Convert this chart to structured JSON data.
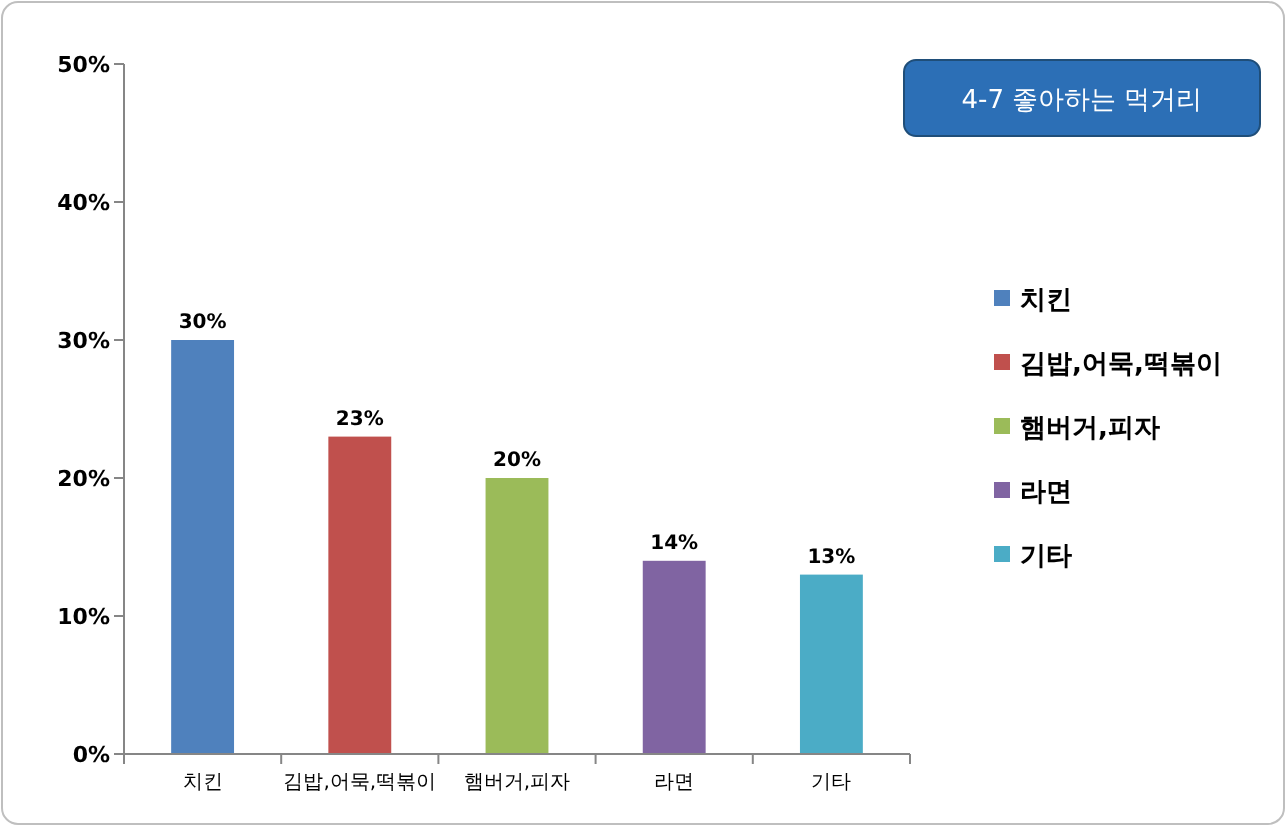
{
  "chart_data": {
    "type": "bar",
    "title": "4-7 좋아하는 먹거리",
    "categories": [
      "치킨",
      "김밥,어묵,떡볶이",
      "햄버거,피자",
      "라면",
      "기타"
    ],
    "series": [
      {
        "name": "치킨",
        "color": "#4f81bd",
        "values": [
          30,
          null,
          null,
          null,
          null
        ],
        "value_labels": [
          "30%",
          null,
          null,
          null,
          null
        ]
      },
      {
        "name": "김밥,어묵,떡볶이",
        "color": "#c0504d",
        "values": [
          null,
          23,
          null,
          null,
          null
        ],
        "value_labels": [
          null,
          "23%",
          null,
          null,
          null
        ]
      },
      {
        "name": "햄버거,피자",
        "color": "#9bbb59",
        "values": [
          null,
          null,
          20,
          null,
          null
        ],
        "value_labels": [
          null,
          null,
          "20%",
          null,
          null
        ]
      },
      {
        "name": "라면",
        "color": "#8064a2",
        "values": [
          null,
          null,
          null,
          14,
          null
        ],
        "value_labels": [
          null,
          null,
          null,
          "14%",
          null
        ]
      },
      {
        "name": "기타",
        "color": "#4bacc6",
        "values": [
          null,
          null,
          null,
          null,
          13
        ],
        "value_labels": [
          null,
          null,
          null,
          null,
          "13%"
        ]
      }
    ],
    "ylim": [
      0,
      50
    ],
    "yticks": [
      {
        "value": 0,
        "label": "0%"
      },
      {
        "value": 10,
        "label": "10%"
      },
      {
        "value": 20,
        "label": "20%"
      },
      {
        "value": 30,
        "label": "30%"
      },
      {
        "value": 40,
        "label": "40%"
      },
      {
        "value": 50,
        "label": "50%"
      }
    ],
    "grid": false,
    "legend": "right"
  }
}
